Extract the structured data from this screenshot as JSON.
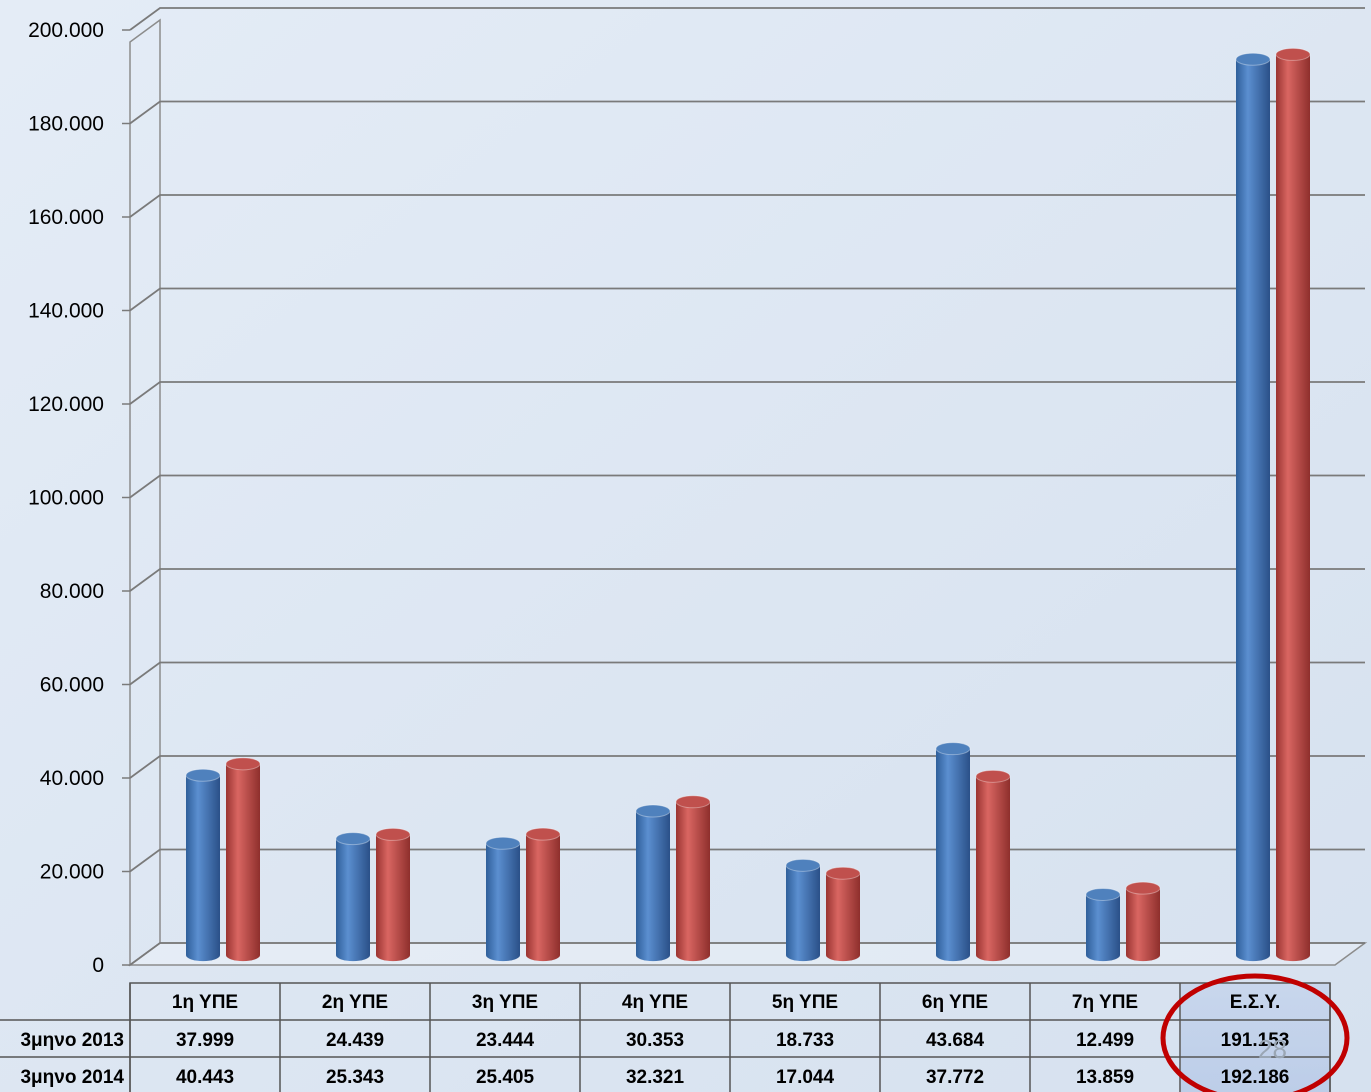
{
  "slide_number": "28",
  "chart_data": {
    "type": "bar",
    "categories": [
      "1η ΥΠΕ",
      "2η ΥΠΕ",
      "3η ΥΠΕ",
      "4η ΥΠΕ",
      "5η ΥΠΕ",
      "6η ΥΠΕ",
      "7η ΥΠΕ",
      "Ε.Σ.Υ."
    ],
    "series": [
      {
        "name": "3μηνο 2013",
        "values": [
          37999,
          24439,
          23444,
          30353,
          18733,
          43684,
          12499,
          191153
        ]
      },
      {
        "name": "3μηνο 2014",
        "values": [
          40443,
          25343,
          25405,
          32321,
          17044,
          37772,
          13859,
          192186
        ]
      }
    ],
    "series_value_labels": [
      [
        "37.999",
        "24.439",
        "23.444",
        "30.353",
        "18.733",
        "43.684",
        "12.499",
        "191.153"
      ],
      [
        "40.443",
        "25.343",
        "25.405",
        "32.321",
        "17.044",
        "37.772",
        "13.859",
        "192.186"
      ]
    ],
    "series_colors": [
      "#4f81bd",
      "#c0504d"
    ],
    "ylim": [
      0,
      200000
    ],
    "yticks": [
      0,
      20000,
      40000,
      60000,
      80000,
      100000,
      120000,
      140000,
      160000,
      180000,
      200000
    ],
    "ytick_labels": [
      "0",
      "20.000",
      "40.000",
      "60.000",
      "80.000",
      "100.000",
      "120.000",
      "140.000",
      "160.000",
      "180.000",
      "200.000"
    ],
    "grid": true,
    "data_table": true,
    "highlighted_category": "Ε.Σ.Υ.",
    "highlight_color": "#c00000"
  }
}
